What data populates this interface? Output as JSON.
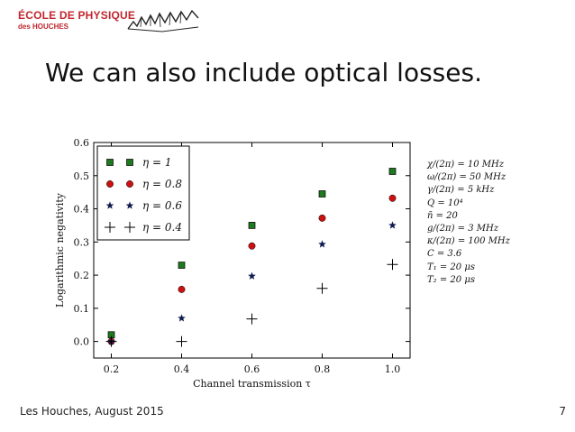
{
  "logo": {
    "line1": "ÉCOLE DE PHYSIQUE",
    "line2": "des HOUCHES"
  },
  "slide": {
    "title": "We can also include optical losses."
  },
  "footer": {
    "text": "Les Houches, August 2015",
    "page": "7"
  },
  "params": [
    "χ/(2π) = 10 MHz",
    "ω/(2π) = 50 MHz",
    "γ/(2π) = 5 kHz",
    "Q = 10⁴",
    "n̄ = 20",
    "g/(2π) = 3 MHz",
    "κ/(2π) = 100 MHz",
    "C = 3.6",
    "T₁ = 20 μs",
    "T₂ = 20 μs"
  ],
  "chart_data": {
    "type": "scatter",
    "xlabel": "Channel transmission τ",
    "ylabel": "Logarithmic negativity",
    "xlim": [
      0.15,
      1.05
    ],
    "ylim": [
      -0.05,
      0.6
    ],
    "xticks": [
      0.2,
      0.4,
      0.6,
      0.8,
      1.0
    ],
    "xtick_labels": [
      "0.2",
      "0.4",
      "0.6",
      "0.8",
      "1.0"
    ],
    "yticks": [
      0.0,
      0.1,
      0.2,
      0.3,
      0.4,
      0.5,
      0.6
    ],
    "ytick_labels": [
      "0.0",
      "0.1",
      "0.2",
      "0.3",
      "0.4",
      "0.5",
      "0.6"
    ],
    "legend_position": "top-left",
    "x": [
      0.2,
      0.4,
      0.6,
      0.8,
      1.0
    ],
    "series": [
      {
        "name": "η = 1",
        "marker": "square",
        "color": "#1e7a1e",
        "values": [
          0.02,
          0.23,
          0.35,
          0.445,
          0.513
        ]
      },
      {
        "name": "η = 0.8",
        "marker": "circle",
        "color": "#cc1111",
        "values": [
          0.0,
          0.157,
          0.288,
          0.372,
          0.432
        ]
      },
      {
        "name": "η = 0.6",
        "marker": "star",
        "color": "#0d1a4d",
        "values": [
          0.0,
          0.07,
          0.197,
          0.293,
          0.35
        ]
      },
      {
        "name": "η = 0.4",
        "marker": "plus",
        "color": "#000000",
        "values": [
          0.0,
          0.0,
          0.068,
          0.16,
          0.232
        ]
      }
    ]
  }
}
